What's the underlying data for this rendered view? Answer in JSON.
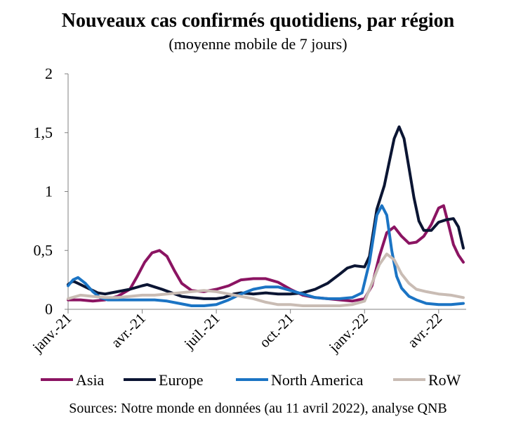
{
  "title": "Nouveaux cas confirmés quotidiens, par région",
  "subtitle": "(moyenne mobile de 7 jours)",
  "source": "Sources: Notre monde en données (au 11 avril 2022), analyse QNB",
  "chart_data": {
    "type": "line",
    "title": "Nouveaux cas confirmés quotidiens, par région",
    "subtitle": "(moyenne mobile de 7 jours)",
    "x_tick_labels": [
      "janv.-21",
      "avr.-21",
      "juil.-21",
      "oct.-21",
      "janv.-22",
      "avr.-22"
    ],
    "y_tick_labels": [
      "0",
      "0,5",
      "1",
      "1,5",
      "2"
    ],
    "ylim": [
      0,
      2
    ],
    "legend_position": "bottom",
    "grid": false,
    "series": [
      {
        "name": "Asia",
        "color": "#8B1462",
        "points": [
          [
            0,
            0.08
          ],
          [
            0.5,
            0.08
          ],
          [
            1,
            0.07
          ],
          [
            1.5,
            0.08
          ],
          [
            2,
            0.11
          ],
          [
            2.5,
            0.17
          ],
          [
            2.8,
            0.28
          ],
          [
            3.1,
            0.4
          ],
          [
            3.4,
            0.48
          ],
          [
            3.7,
            0.5
          ],
          [
            4.0,
            0.45
          ],
          [
            4.3,
            0.33
          ],
          [
            4.6,
            0.22
          ],
          [
            5.0,
            0.16
          ],
          [
            5.5,
            0.15
          ],
          [
            6.0,
            0.17
          ],
          [
            6.5,
            0.2
          ],
          [
            7.0,
            0.25
          ],
          [
            7.5,
            0.26
          ],
          [
            8.0,
            0.26
          ],
          [
            8.5,
            0.23
          ],
          [
            9.0,
            0.17
          ],
          [
            9.5,
            0.12
          ],
          [
            10.0,
            0.1
          ],
          [
            10.5,
            0.09
          ],
          [
            11.0,
            0.08
          ],
          [
            11.5,
            0.07
          ],
          [
            12.0,
            0.09
          ],
          [
            12.3,
            0.2
          ],
          [
            12.6,
            0.45
          ],
          [
            12.9,
            0.65
          ],
          [
            13.2,
            0.7
          ],
          [
            13.5,
            0.62
          ],
          [
            13.8,
            0.56
          ],
          [
            14.1,
            0.57
          ],
          [
            14.4,
            0.62
          ],
          [
            14.7,
            0.72
          ],
          [
            15.0,
            0.86
          ],
          [
            15.2,
            0.88
          ],
          [
            15.4,
            0.72
          ],
          [
            15.6,
            0.55
          ],
          [
            15.8,
            0.46
          ],
          [
            16.0,
            0.4
          ]
        ]
      },
      {
        "name": "Europe",
        "color": "#0B1533",
        "points": [
          [
            0,
            0.21
          ],
          [
            0.2,
            0.24
          ],
          [
            0.4,
            0.22
          ],
          [
            0.8,
            0.18
          ],
          [
            1.2,
            0.14
          ],
          [
            1.5,
            0.13
          ],
          [
            2,
            0.15
          ],
          [
            2.5,
            0.17
          ],
          [
            3,
            0.2
          ],
          [
            3.2,
            0.21
          ],
          [
            3.5,
            0.19
          ],
          [
            3.8,
            0.17
          ],
          [
            4.2,
            0.14
          ],
          [
            4.6,
            0.11
          ],
          [
            5.0,
            0.1
          ],
          [
            5.5,
            0.09
          ],
          [
            6.0,
            0.09
          ],
          [
            6.3,
            0.1
          ],
          [
            6.7,
            0.13
          ],
          [
            7.0,
            0.14
          ],
          [
            7.5,
            0.13
          ],
          [
            8.0,
            0.14
          ],
          [
            8.5,
            0.13
          ],
          [
            9.0,
            0.13
          ],
          [
            9.5,
            0.14
          ],
          [
            10.0,
            0.17
          ],
          [
            10.5,
            0.22
          ],
          [
            11.0,
            0.3
          ],
          [
            11.3,
            0.35
          ],
          [
            11.6,
            0.37
          ],
          [
            12.0,
            0.36
          ],
          [
            12.2,
            0.45
          ],
          [
            12.5,
            0.85
          ],
          [
            12.8,
            1.05
          ],
          [
            13.0,
            1.25
          ],
          [
            13.2,
            1.45
          ],
          [
            13.4,
            1.55
          ],
          [
            13.6,
            1.45
          ],
          [
            13.8,
            1.2
          ],
          [
            14.0,
            0.95
          ],
          [
            14.2,
            0.75
          ],
          [
            14.4,
            0.67
          ],
          [
            14.7,
            0.67
          ],
          [
            15.0,
            0.74
          ],
          [
            15.3,
            0.76
          ],
          [
            15.6,
            0.77
          ],
          [
            15.8,
            0.7
          ],
          [
            16.0,
            0.52
          ]
        ]
      },
      {
        "name": "North America",
        "color": "#1B74C4",
        "points": [
          [
            0,
            0.2
          ],
          [
            0.2,
            0.25
          ],
          [
            0.4,
            0.27
          ],
          [
            0.7,
            0.22
          ],
          [
            1.0,
            0.15
          ],
          [
            1.3,
            0.1
          ],
          [
            1.6,
            0.08
          ],
          [
            2.0,
            0.08
          ],
          [
            2.5,
            0.08
          ],
          [
            3.0,
            0.08
          ],
          [
            3.5,
            0.08
          ],
          [
            4.0,
            0.07
          ],
          [
            4.5,
            0.05
          ],
          [
            5.0,
            0.03
          ],
          [
            5.5,
            0.03
          ],
          [
            6.0,
            0.04
          ],
          [
            6.5,
            0.08
          ],
          [
            7.0,
            0.13
          ],
          [
            7.5,
            0.17
          ],
          [
            8.0,
            0.19
          ],
          [
            8.5,
            0.19
          ],
          [
            9.0,
            0.16
          ],
          [
            9.5,
            0.13
          ],
          [
            10.0,
            0.1
          ],
          [
            10.5,
            0.09
          ],
          [
            11.0,
            0.09
          ],
          [
            11.5,
            0.1
          ],
          [
            11.9,
            0.14
          ],
          [
            12.2,
            0.4
          ],
          [
            12.5,
            0.8
          ],
          [
            12.7,
            0.88
          ],
          [
            12.9,
            0.8
          ],
          [
            13.1,
            0.5
          ],
          [
            13.3,
            0.28
          ],
          [
            13.5,
            0.18
          ],
          [
            13.8,
            0.11
          ],
          [
            14.1,
            0.08
          ],
          [
            14.5,
            0.05
          ],
          [
            15.0,
            0.04
          ],
          [
            15.5,
            0.04
          ],
          [
            16.0,
            0.05
          ]
        ]
      },
      {
        "name": "RoW",
        "color": "#C9BCB4",
        "points": [
          [
            0,
            0.09
          ],
          [
            0.5,
            0.12
          ],
          [
            1.0,
            0.11
          ],
          [
            1.5,
            0.1
          ],
          [
            2.0,
            0.1
          ],
          [
            2.5,
            0.11
          ],
          [
            3.0,
            0.12
          ],
          [
            3.5,
            0.12
          ],
          [
            4.0,
            0.13
          ],
          [
            4.5,
            0.14
          ],
          [
            5.0,
            0.15
          ],
          [
            5.5,
            0.16
          ],
          [
            6.0,
            0.15
          ],
          [
            6.5,
            0.13
          ],
          [
            7.0,
            0.11
          ],
          [
            7.5,
            0.09
          ],
          [
            8.0,
            0.06
          ],
          [
            8.5,
            0.04
          ],
          [
            9.0,
            0.04
          ],
          [
            9.5,
            0.03
          ],
          [
            10.0,
            0.03
          ],
          [
            10.5,
            0.03
          ],
          [
            11.0,
            0.03
          ],
          [
            11.5,
            0.04
          ],
          [
            12.0,
            0.07
          ],
          [
            12.3,
            0.22
          ],
          [
            12.6,
            0.38
          ],
          [
            12.9,
            0.47
          ],
          [
            13.2,
            0.42
          ],
          [
            13.5,
            0.3
          ],
          [
            13.8,
            0.22
          ],
          [
            14.1,
            0.17
          ],
          [
            14.5,
            0.15
          ],
          [
            15.0,
            0.13
          ],
          [
            15.5,
            0.12
          ],
          [
            16.0,
            0.1
          ]
        ]
      }
    ]
  }
}
